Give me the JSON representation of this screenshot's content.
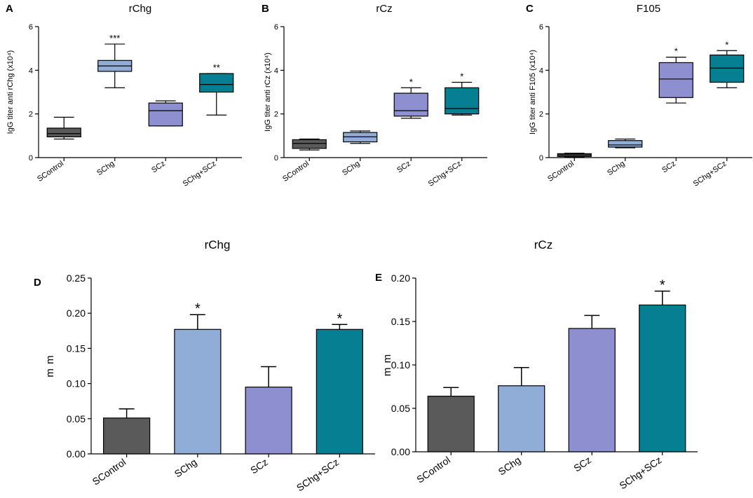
{
  "colors": {
    "SControl": "#5a5a5a",
    "SChg": "#8fadd6",
    "SCz": "#8e8fd1",
    "SChg+SCz": "#077f93"
  },
  "chart_data": [
    {
      "letter": "A",
      "type": "box",
      "title": "rChg",
      "ylabel": "IgG titer anti rChg (x10⁴)",
      "ylim": [
        0,
        6
      ],
      "yticks": [
        "0",
        "2",
        "4",
        "6"
      ],
      "categories": [
        "SControl",
        "SChg",
        "SCz",
        "SChg+SCz"
      ],
      "boxes": [
        {
          "min": 0.85,
          "q1": 0.95,
          "median": 1.1,
          "q3": 1.35,
          "max": 1.85,
          "sig": ""
        },
        {
          "min": 3.2,
          "q1": 3.95,
          "median": 4.2,
          "q3": 4.45,
          "max": 5.2,
          "sig": "***"
        },
        {
          "min": 1.45,
          "q1": 1.45,
          "median": 2.15,
          "q3": 2.5,
          "max": 2.6,
          "sig": ""
        },
        {
          "min": 1.95,
          "q1": 3.0,
          "median": 3.35,
          "q3": 3.85,
          "max": 3.85,
          "sig": "**"
        }
      ]
    },
    {
      "letter": "B",
      "type": "box",
      "title": "rCz",
      "ylabel": "IgG titer anti rCz (x10⁴)",
      "ylim": [
        0,
        6
      ],
      "yticks": [
        "0",
        "2",
        "4",
        "6"
      ],
      "categories": [
        "SControl",
        "SChg",
        "SCz",
        "SChg+SCz"
      ],
      "boxes": [
        {
          "min": 0.35,
          "q1": 0.42,
          "median": 0.65,
          "q3": 0.82,
          "max": 0.85,
          "sig": ""
        },
        {
          "min": 0.65,
          "q1": 0.72,
          "median": 0.95,
          "q3": 1.15,
          "max": 1.22,
          "sig": ""
        },
        {
          "min": 1.8,
          "q1": 1.9,
          "median": 2.15,
          "q3": 2.95,
          "max": 3.2,
          "sig": "*"
        },
        {
          "min": 1.95,
          "q1": 2.0,
          "median": 2.25,
          "q3": 3.2,
          "max": 3.45,
          "sig": "*"
        }
      ]
    },
    {
      "letter": "C",
      "type": "box",
      "title": "F105",
      "ylabel": "IgG titer anti F105 (x10⁴)",
      "ylim": [
        0,
        6
      ],
      "yticks": [
        "0",
        "2",
        "4",
        "6"
      ],
      "categories": [
        "SControl",
        "SChg",
        "SCz",
        "SChg+SCz"
      ],
      "boxes": [
        {
          "min": 0.02,
          "q1": 0.05,
          "median": 0.12,
          "q3": 0.18,
          "max": 0.2,
          "sig": ""
        },
        {
          "min": 0.45,
          "q1": 0.48,
          "median": 0.58,
          "q3": 0.78,
          "max": 0.85,
          "sig": ""
        },
        {
          "min": 2.5,
          "q1": 2.75,
          "median": 3.6,
          "q3": 4.35,
          "max": 4.6,
          "sig": "*"
        },
        {
          "min": 3.2,
          "q1": 3.45,
          "median": 4.1,
          "q3": 4.7,
          "max": 4.9,
          "sig": "*"
        }
      ]
    },
    {
      "letter": "D",
      "type": "bar",
      "title": "rChg",
      "ylabel": "m m",
      "ylim": [
        0,
        0.25
      ],
      "yticks": [
        "0.00",
        "0.05",
        "0.10",
        "0.15",
        "0.20",
        "0.25"
      ],
      "categories": [
        "SControl",
        "SChg",
        "SCz",
        "SChg+SCz"
      ],
      "values": [
        0.051,
        0.177,
        0.095,
        0.177
      ],
      "errors": [
        0.013,
        0.021,
        0.029,
        0.007
      ],
      "sig": [
        "",
        "*",
        "",
        "*"
      ]
    },
    {
      "letter": "E",
      "type": "bar",
      "title": "rCz",
      "ylabel": "m m",
      "ylim": [
        0,
        0.2
      ],
      "yticks": [
        "0.00",
        "0.05",
        "0.10",
        "0.15",
        "0.20"
      ],
      "categories": [
        "SControl",
        "SChg",
        "SCz",
        "SChg+SCz"
      ],
      "values": [
        0.064,
        0.076,
        0.142,
        0.169
      ],
      "errors": [
        0.01,
        0.021,
        0.015,
        0.016
      ],
      "sig": [
        "",
        "",
        "",
        "*"
      ]
    }
  ]
}
